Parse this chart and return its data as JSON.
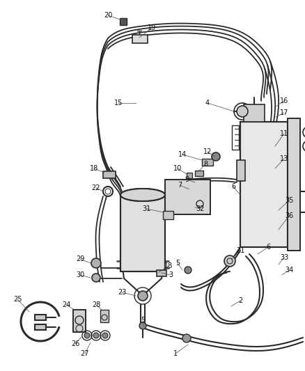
{
  "bg_color": "#ffffff",
  "fig_width": 4.38,
  "fig_height": 5.33,
  "dpi": 100,
  "line_color": "#2a2a2a",
  "label_fontsize": 7.0,
  "label_color": "#111111",
  "leader_color": "#555555"
}
